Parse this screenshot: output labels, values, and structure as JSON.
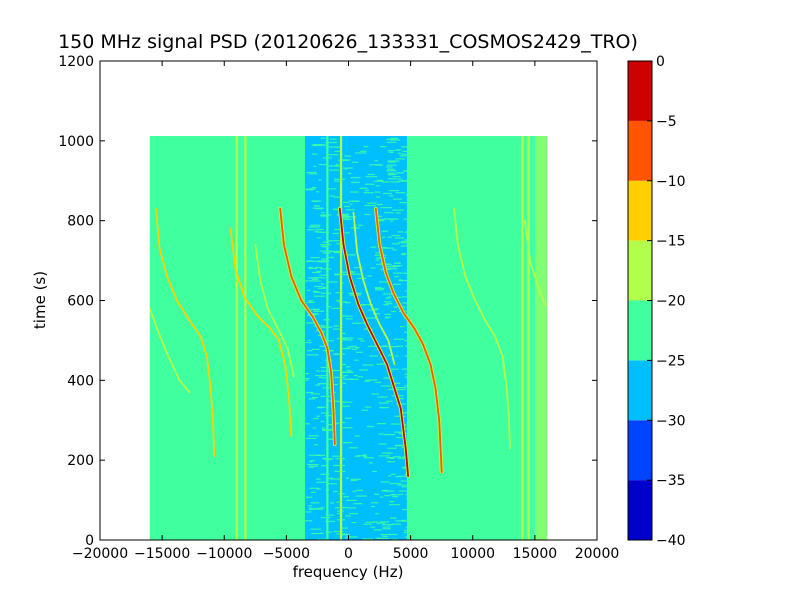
{
  "chart_data": {
    "type": "heatmap",
    "title": "150 MHz signal PSD (20120626_133331_COSMOS2429_TRO)",
    "xlabel": "frequency (Hz)",
    "ylabel": "time (s)",
    "xlim": [
      -20000,
      20000
    ],
    "ylim": [
      0,
      1200
    ],
    "xticks": [
      -20000,
      -15000,
      -10000,
      -5000,
      0,
      5000,
      10000,
      15000,
      20000
    ],
    "xtick_labels": [
      "−20000",
      "−15000",
      "−10000",
      "−5000",
      "0",
      "5000",
      "10000",
      "15000",
      "20000"
    ],
    "yticks": [
      0,
      200,
      400,
      600,
      800,
      1000,
      1200
    ],
    "ytick_labels": [
      "0",
      "200",
      "400",
      "600",
      "800",
      "1000",
      "1200"
    ],
    "data_extent": {
      "x": [
        -16000,
        16000
      ],
      "y": [
        0,
        1012
      ]
    },
    "background_level": -22,
    "central_band": {
      "x": [
        -3500,
        4700
      ],
      "level": -27
    },
    "edge_bands": [
      {
        "x": [
          -16000,
          -15000
        ],
        "level": -22
      },
      {
        "x": [
          15000,
          16000
        ],
        "level": -19
      }
    ],
    "vertical_lines": [
      {
        "x": -9000,
        "level": -18
      },
      {
        "x": -8300,
        "level": -18
      },
      {
        "x": -1700,
        "level": -22
      },
      {
        "x": -600,
        "level": -20
      },
      {
        "x": 14000,
        "level": -18
      },
      {
        "x": 14500,
        "level": -18
      }
    ],
    "doppler_tracks": [
      {
        "level": -8,
        "points": [
          [
            -5500,
            830
          ],
          [
            -5200,
            740
          ],
          [
            -4600,
            660
          ],
          [
            -3800,
            600
          ],
          [
            -2900,
            560
          ],
          [
            -2200,
            520
          ],
          [
            -1700,
            480
          ],
          [
            -1400,
            420
          ],
          [
            -1200,
            320
          ],
          [
            -1100,
            240
          ]
        ]
      },
      {
        "level": -3,
        "points": [
          [
            -700,
            830
          ],
          [
            -400,
            740
          ],
          [
            100,
            660
          ],
          [
            800,
            590
          ],
          [
            1500,
            540
          ],
          [
            2300,
            490
          ],
          [
            3100,
            440
          ],
          [
            3600,
            390
          ],
          [
            4200,
            330
          ],
          [
            4600,
            230
          ],
          [
            4800,
            160
          ]
        ]
      },
      {
        "level": -8,
        "points": [
          [
            2200,
            830
          ],
          [
            2500,
            740
          ],
          [
            3000,
            670
          ],
          [
            3600,
            620
          ],
          [
            4400,
            570
          ],
          [
            5300,
            530
          ],
          [
            6000,
            490
          ],
          [
            6600,
            440
          ],
          [
            7000,
            380
          ],
          [
            7300,
            300
          ],
          [
            7500,
            170
          ]
        ]
      },
      {
        "level": -17,
        "points": [
          [
            8500,
            830
          ],
          [
            8800,
            740
          ],
          [
            9400,
            660
          ],
          [
            10200,
            600
          ],
          [
            11000,
            550
          ],
          [
            11800,
            510
          ],
          [
            12400,
            460
          ],
          [
            12700,
            390
          ],
          [
            12900,
            310
          ],
          [
            13000,
            230
          ]
        ]
      },
      {
        "level": -14,
        "points": [
          [
            -9500,
            780
          ],
          [
            -9100,
            680
          ],
          [
            -8400,
            610
          ],
          [
            -7300,
            560
          ],
          [
            -6300,
            530
          ],
          [
            -5600,
            500
          ],
          [
            -5100,
            440
          ],
          [
            -4800,
            360
          ],
          [
            -4600,
            260
          ]
        ]
      },
      {
        "level": -18,
        "points": [
          [
            -7500,
            740
          ],
          [
            -7100,
            650
          ],
          [
            -6500,
            580
          ],
          [
            -5700,
            530
          ],
          [
            -4900,
            480
          ],
          [
            -4400,
            410
          ]
        ]
      },
      {
        "level": -13,
        "points": [
          [
            -15500,
            830
          ],
          [
            -15200,
            730
          ],
          [
            -14600,
            660
          ],
          [
            -13800,
            600
          ],
          [
            -12800,
            550
          ],
          [
            -11900,
            510
          ],
          [
            -11400,
            460
          ],
          [
            -11100,
            380
          ],
          [
            -10900,
            290
          ],
          [
            -10800,
            210
          ]
        ]
      },
      {
        "level": -17,
        "points": [
          [
            -16000,
            580
          ],
          [
            -15300,
            520
          ],
          [
            -14500,
            460
          ],
          [
            -13600,
            400
          ],
          [
            -12800,
            370
          ]
        ]
      },
      {
        "level": -17,
        "points": [
          [
            400,
            820
          ],
          [
            700,
            720
          ],
          [
            1200,
            650
          ],
          [
            1800,
            590
          ],
          [
            2500,
            540
          ],
          [
            3200,
            500
          ],
          [
            3700,
            440
          ]
        ]
      },
      {
        "level": -16,
        "points": [
          [
            14200,
            800
          ],
          [
            14600,
            700
          ],
          [
            15200,
            640
          ],
          [
            15800,
            590
          ]
        ]
      }
    ],
    "colorbar": {
      "levels": [
        -40,
        -35,
        -30,
        -25,
        -20,
        -15,
        -10,
        -5,
        0
      ],
      "tick_labels": [
        "−40",
        "−35",
        "−30",
        "−25",
        "−20",
        "−15",
        "−10",
        "−5",
        "0"
      ],
      "colors": [
        "#0000cc",
        "#0044ff",
        "#00bfff",
        "#40ff9f",
        "#b2ff4b",
        "#ffd000",
        "#ff5500",
        "#cc0000"
      ]
    }
  }
}
